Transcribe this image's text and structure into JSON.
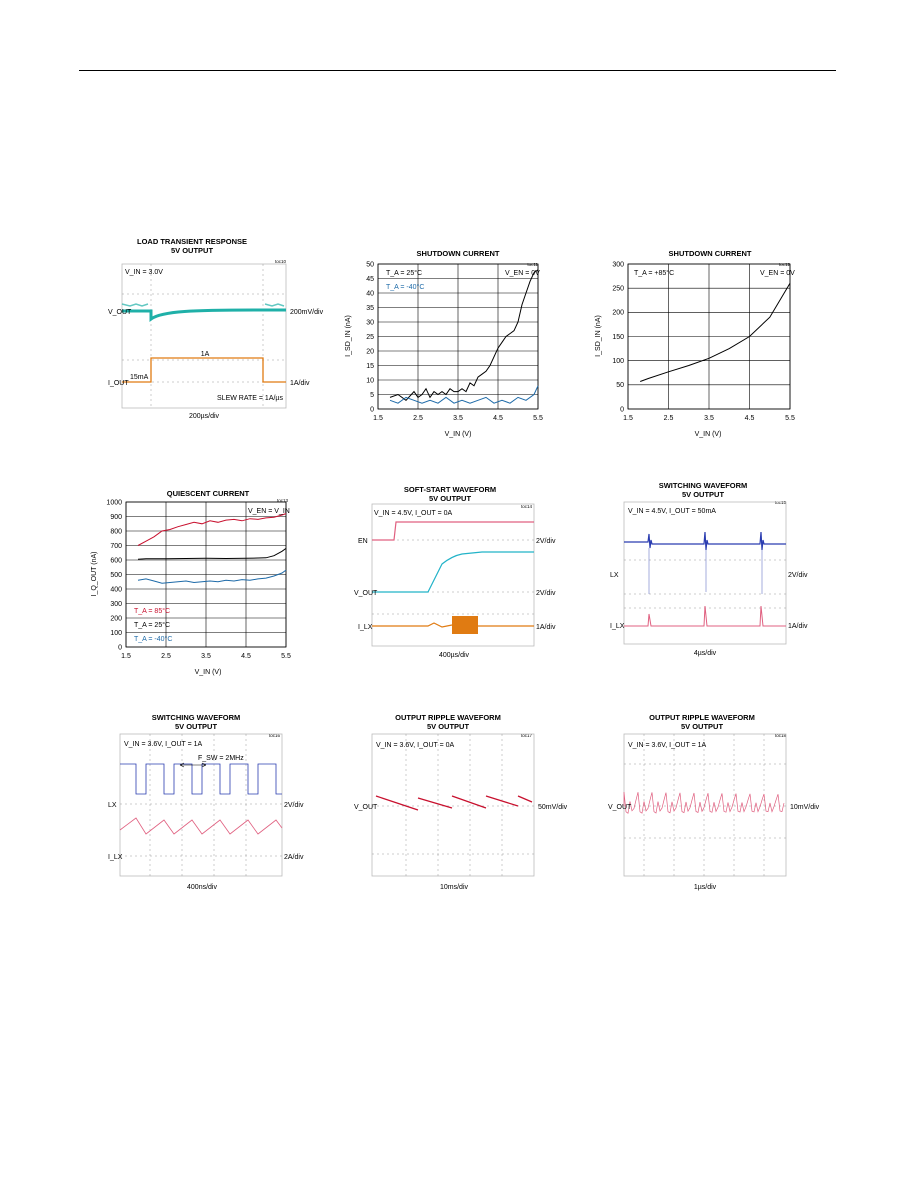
{
  "colors": {
    "red": "#c8102e",
    "black": "#000000",
    "blue": "#1d6aa8",
    "teal": "#1fb0a8",
    "orange": "#e07b12",
    "cyan": "#22b3c8",
    "navy": "#2a3cb0",
    "pink": "#e06080"
  },
  "chart_data": [
    {
      "id": "toc10",
      "type": "scope",
      "title": "LOAD TRANSIENT RESPONSE",
      "subtitle": "5V OUTPUT",
      "tag": "toc10",
      "condition": "V_IN = 3.0V",
      "channels": [
        {
          "name": "V_OUT",
          "scale": "200mV/div",
          "color": "#1fb0a8"
        },
        {
          "name": "I_OUT",
          "scale": "1A/div",
          "color": "#e07b12"
        }
      ],
      "annotations": [
        "1A",
        "15mA",
        "SLEW RATE = 1A/µs"
      ],
      "xscale": "200µs/div"
    },
    {
      "id": "toc11",
      "type": "line",
      "title": "SHUTDOWN CURRENT",
      "tag": "toc11",
      "xlabel": "V_IN (V)",
      "ylabel": "I_SD_IN (nA)",
      "xlim": [
        1.5,
        5.5
      ],
      "ylim": [
        0,
        50
      ],
      "xticks": [
        1.5,
        2.5,
        3.5,
        4.5,
        5.5
      ],
      "yticks": [
        0,
        5,
        10,
        15,
        20,
        25,
        30,
        35,
        40,
        45,
        50
      ],
      "annotations": [
        "V_EN = 0V"
      ],
      "series": [
        {
          "name": "T_A = 25°C",
          "color": "#000000",
          "x": [
            1.8,
            2.0,
            2.2,
            2.4,
            2.5,
            2.6,
            2.7,
            2.8,
            2.9,
            3.0,
            3.1,
            3.2,
            3.3,
            3.4,
            3.5,
            3.6,
            3.7,
            3.8,
            3.9,
            4.0,
            4.1,
            4.2,
            4.3,
            4.4,
            4.5,
            4.6,
            4.7,
            4.8,
            4.9,
            5.0,
            5.1,
            5.2,
            5.3,
            5.4,
            5.5
          ],
          "y": [
            4,
            5,
            3,
            6,
            4,
            5,
            7,
            4,
            6,
            5,
            6,
            5,
            7,
            6,
            6,
            7,
            6,
            9,
            8,
            11,
            12,
            13,
            15,
            18,
            21,
            23,
            25,
            26,
            27,
            30,
            36,
            40,
            44,
            47,
            48
          ]
        },
        {
          "name": "T_A = -40°C",
          "color": "#1d6aa8",
          "x": [
            1.8,
            2.0,
            2.2,
            2.4,
            2.6,
            2.8,
            3.0,
            3.2,
            3.4,
            3.6,
            3.8,
            4.0,
            4.2,
            4.4,
            4.6,
            4.8,
            5.0,
            5.2,
            5.4,
            5.5
          ],
          "y": [
            3,
            2,
            4,
            3,
            2,
            3,
            2,
            4,
            2,
            3,
            2,
            3,
            4,
            2,
            3,
            2,
            4,
            3,
            5,
            8
          ]
        }
      ]
    },
    {
      "id": "toc12",
      "type": "line",
      "title": "SHUTDOWN CURRENT",
      "tag": "toc12",
      "xlabel": "V_IN (V)",
      "ylabel": "I_SD_IN (nA)",
      "xlim": [
        1.5,
        5.5
      ],
      "ylim": [
        0,
        300
      ],
      "xticks": [
        1.5,
        2.5,
        3.5,
        4.5,
        5.5
      ],
      "yticks": [
        0,
        50,
        100,
        150,
        200,
        250,
        300
      ],
      "annotations": [
        "V_EN = 0V"
      ],
      "series": [
        {
          "name": "T_A = +85°C",
          "color": "#000000",
          "x": [
            1.8,
            2.0,
            2.5,
            3.0,
            3.5,
            4.0,
            4.5,
            5.0,
            5.5
          ],
          "y": [
            57,
            63,
            77,
            90,
            105,
            125,
            150,
            190,
            260
          ]
        }
      ]
    },
    {
      "id": "toc13",
      "type": "line",
      "title": "QUIESCENT CURRENT",
      "tag": "toc13",
      "xlabel": "V_IN (V)",
      "ylabel": "I_Q_OUT (nA)",
      "xlim": [
        1.5,
        5.5
      ],
      "ylim": [
        0,
        1000
      ],
      "xticks": [
        1.5,
        2.5,
        3.5,
        4.5,
        5.5
      ],
      "yticks": [
        0,
        100,
        200,
        300,
        400,
        500,
        600,
        700,
        800,
        900,
        1000
      ],
      "annotations": [
        "V_EN = V_IN"
      ],
      "series": [
        {
          "name": "T_A = 85°C",
          "color": "#c8102e",
          "x": [
            1.8,
            2.0,
            2.2,
            2.4,
            2.6,
            2.8,
            3.0,
            3.2,
            3.4,
            3.6,
            3.8,
            4.0,
            4.2,
            4.4,
            4.6,
            4.8,
            5.0,
            5.2,
            5.4,
            5.5
          ],
          "y": [
            700,
            730,
            760,
            800,
            810,
            830,
            845,
            860,
            850,
            870,
            860,
            875,
            880,
            870,
            885,
            880,
            890,
            895,
            910,
            920
          ]
        },
        {
          "name": "T_A = 25°C",
          "color": "#000000",
          "x": [
            1.8,
            2.0,
            2.5,
            3.0,
            3.5,
            4.0,
            4.5,
            5.0,
            5.2,
            5.4,
            5.5
          ],
          "y": [
            605,
            608,
            608,
            610,
            612,
            610,
            612,
            615,
            630,
            660,
            680
          ]
        },
        {
          "name": "T_A = -40°C",
          "color": "#1d6aa8",
          "x": [
            1.8,
            2.0,
            2.2,
            2.4,
            2.6,
            2.8,
            3.0,
            3.2,
            3.4,
            3.6,
            3.8,
            4.0,
            4.2,
            4.4,
            4.6,
            4.8,
            5.0,
            5.2,
            5.4,
            5.5
          ],
          "y": [
            460,
            470,
            455,
            440,
            445,
            450,
            455,
            445,
            450,
            455,
            450,
            460,
            455,
            465,
            460,
            470,
            475,
            490,
            510,
            530
          ]
        }
      ]
    },
    {
      "id": "toc14",
      "type": "scope",
      "title": "SOFT-START WAVEFORM",
      "subtitle": "5V OUTPUT",
      "tag": "toc14",
      "condition": "V_IN = 4.5V, I_OUT = 0A",
      "channels": [
        {
          "name": "EN",
          "scale": "2V/div",
          "color": "#e06080"
        },
        {
          "name": "V_OUT",
          "scale": "2V/div",
          "color": "#22b3c8"
        },
        {
          "name": "I_LX",
          "scale": "1A/div",
          "color": "#e07b12"
        }
      ],
      "xscale": "400µs/div"
    },
    {
      "id": "toc15",
      "type": "scope",
      "title": "SWITCHING WAVEFORM",
      "subtitle": "5V OUTPUT",
      "tag": "toc15",
      "condition": "V_IN = 4.5V, I_OUT = 50mA",
      "channels": [
        {
          "name": "LX",
          "scale": "2V/div",
          "color": "#2a3cb0"
        },
        {
          "name": "I_LX",
          "scale": "1A/div",
          "color": "#e06080"
        }
      ],
      "xscale": "4µs/div"
    },
    {
      "id": "toc16",
      "type": "scope",
      "title": "SWITCHING WAVEFORM",
      "subtitle": "5V OUTPUT",
      "tag": "toc16",
      "condition": "V_IN = 3.6V, I_OUT = 1A",
      "channels": [
        {
          "name": "LX",
          "scale": "2V/div",
          "color": "#2a3cb0"
        },
        {
          "name": "I_LX",
          "scale": "2A/div",
          "color": "#e06080"
        }
      ],
      "annotations": [
        "F_SW = 2MHz"
      ],
      "xscale": "400ns/div"
    },
    {
      "id": "toc17",
      "type": "scope",
      "title": "OUTPUT RIPPLE WAVEFORM",
      "subtitle": "5V OUTPUT",
      "tag": "toc17",
      "condition": "V_IN = 3.6V, I_OUT = 0A",
      "channels": [
        {
          "name": "V_OUT",
          "scale": "50mV/div",
          "color": "#c8102e"
        }
      ],
      "xscale": "10ms/div"
    },
    {
      "id": "toc18",
      "type": "scope",
      "title": "OUTPUT RIPPLE WAVEFORM",
      "subtitle": "5V OUTPUT",
      "tag": "toc18",
      "condition": "V_IN = 3.6V, I_OUT = 1A",
      "channels": [
        {
          "name": "V_OUT",
          "scale": "10mV/div",
          "color": "#e06080"
        }
      ],
      "xscale": "1µs/div"
    }
  ]
}
